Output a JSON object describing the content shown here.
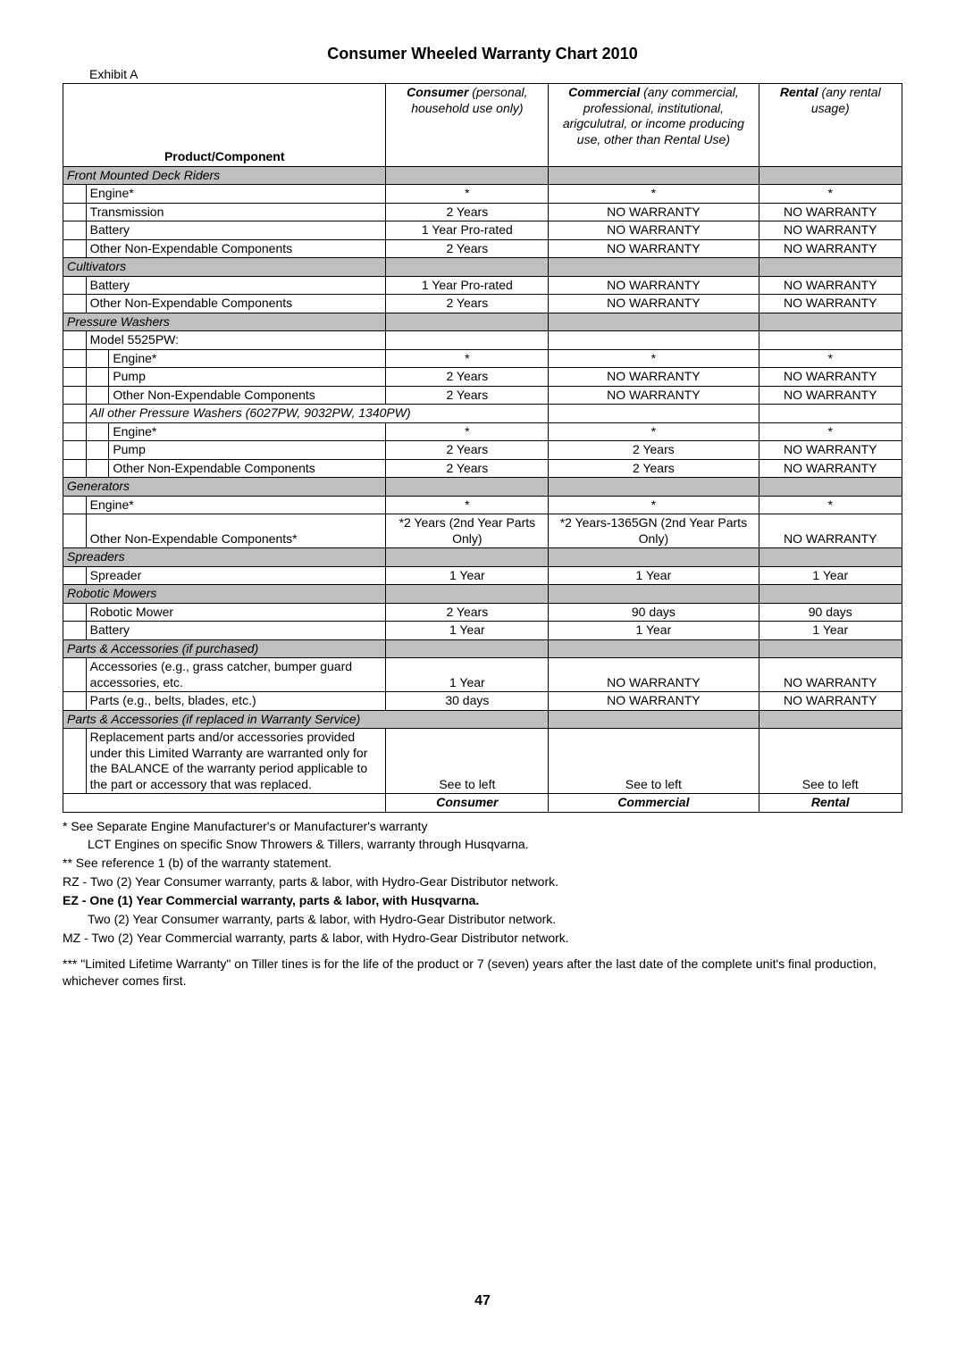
{
  "title": "Consumer Wheeled Warranty Chart 2010",
  "exhibit": "Exhibit A",
  "headers": {
    "product": "Product/Component",
    "consumer_b": "Consumer",
    "consumer_i": " (personal, household use only)",
    "commercial_b": "Commercial",
    "commercial_i": " (any commercial, professional, institutional, arigculutral, or income producing use, other than Rental Use)",
    "rental_b": "Rental",
    "rental_i": " (any rental usage)"
  },
  "sections": [
    {
      "name": "Front Mounted Deck Riders",
      "rows": [
        {
          "indent": 1,
          "label": "Engine*",
          "c": "*",
          "m": "*",
          "r": "*"
        },
        {
          "indent": 1,
          "label": "Transmission",
          "c": "2 Years",
          "m": "NO WARRANTY",
          "r": "NO WARRANTY"
        },
        {
          "indent": 1,
          "label": "Battery",
          "c": "1 Year Pro-rated",
          "m": "NO WARRANTY",
          "r": "NO WARRANTY"
        },
        {
          "indent": 1,
          "label": "Other Non-Expendable Components",
          "c": "2 Years",
          "m": "NO WARRANTY",
          "r": "NO WARRANTY"
        }
      ]
    },
    {
      "name": "Cultivators",
      "rows": [
        {
          "indent": 1,
          "label": "Battery",
          "c": "1 Year Pro-rated",
          "m": "NO WARRANTY",
          "r": "NO WARRANTY"
        },
        {
          "indent": 1,
          "label": "Other Non-Expendable Components",
          "c": "2 Years",
          "m": "NO WARRANTY",
          "r": "NO WARRANTY"
        }
      ]
    },
    {
      "name": "Pressure Washers",
      "rows": [
        {
          "indent": 1,
          "label": "Model 5525PW:",
          "c": "",
          "m": "",
          "r": ""
        },
        {
          "indent": 2,
          "label": "Engine*",
          "c": "*",
          "m": "*",
          "r": "*"
        },
        {
          "indent": 2,
          "label": "Pump",
          "c": "2 Years",
          "m": "NO WARRANTY",
          "r": "NO WARRANTY"
        },
        {
          "indent": 2,
          "label": "Other Non-Expendable Components",
          "c": "2 Years",
          "m": "NO WARRANTY",
          "r": "NO WARRANTY"
        },
        {
          "indent": 1,
          "label": "All other Pressure Washers (6027PW, 9032PW, 1340PW)",
          "c": "",
          "m": "",
          "r": "",
          "note": true,
          "span": 2
        },
        {
          "indent": 2,
          "label": "Engine*",
          "c": "*",
          "m": "*",
          "r": "*"
        },
        {
          "indent": 2,
          "label": "Pump",
          "c": "2 Years",
          "m": "2 Years",
          "r": "NO WARRANTY"
        },
        {
          "indent": 2,
          "label": "Other Non-Expendable Components",
          "c": "2 Years",
          "m": "2 Years",
          "r": "NO WARRANTY"
        }
      ]
    },
    {
      "name": "Generators",
      "rows": [
        {
          "indent": 1,
          "label": "Engine*",
          "c": "*",
          "m": "*",
          "r": "*"
        },
        {
          "indent": 1,
          "label": "Other Non-Expendable Components*",
          "c": "*2 Years (2nd Year Parts Only)",
          "m": "*2 Years-1365GN  (2nd Year Parts Only)",
          "r": "NO WARRANTY",
          "valign": "bottom"
        }
      ]
    },
    {
      "name": "Spreaders",
      "rows": [
        {
          "indent": 1,
          "label": "Spreader",
          "c": "1 Year",
          "m": "1 Year",
          "r": "1 Year"
        }
      ]
    },
    {
      "name": "Robotic Mowers",
      "rows": [
        {
          "indent": 1,
          "label": "Robotic Mower",
          "c": "2 Years",
          "m": "90 days",
          "r": "90 days"
        },
        {
          "indent": 1,
          "label": "Battery",
          "c": "1 Year",
          "m": "1 Year",
          "r": "1 Year"
        }
      ]
    },
    {
      "name": "Parts & Accessories (if purchased)",
      "rows": [
        {
          "indent": 1,
          "label": "Accessories (e.g., grass catcher, bumper guard accessories, etc.",
          "c": "1 Year",
          "m": "NO WARRANTY",
          "r": "NO WARRANTY",
          "valign": "bottom"
        },
        {
          "indent": 1,
          "label": "Parts (e.g., belts, blades, etc.)",
          "c": "30 days",
          "m": "NO WARRANTY",
          "r": "NO WARRANTY"
        }
      ]
    },
    {
      "name": "Parts & Accessories (if replaced in Warranty Service)",
      "spanfull": true,
      "rows": [
        {
          "indent": 1,
          "label": "Replacement parts and/or accessories provided under this Limited Warranty are warranted only for the BALANCE of the warranty period applicable to the part or accessory that was replaced.",
          "c": "See to left",
          "m": "See to left",
          "r": "See to left",
          "valign": "bottom"
        }
      ]
    }
  ],
  "footer_row": {
    "c": "Consumer",
    "m": "Commercial",
    "r": "Rental"
  },
  "notes": [
    {
      "text": "* See Separate Engine Manufacturer's  or Manufacturer's warranty"
    },
    {
      "text": "LCT Engines on specific Snow Throwers & Tillers, warranty through Husqvarna.",
      "indent": true
    },
    {
      "text": "** See reference 1 (b) of the warranty statement."
    },
    {
      "text": "RZ - Two (2) Year Consumer warranty, parts & labor, with Hydro-Gear Distributor network."
    },
    {
      "text": "EZ - One (1) Year Commercial warranty, parts & labor, with Husqvarna.",
      "bold": true
    },
    {
      "text": "Two (2) Year Consumer warranty, parts & labor, with Hydro-Gear Distributor network.",
      "indent": true
    },
    {
      "text": "MZ - Two (2) Year Commercial warranty, parts & labor, with Hydro-Gear Distributor network."
    },
    {
      "text": "*** \"Limited Lifetime Warranty\" on Tiller tines is for the life of the product or 7 (seven) years after the last date of the complete unit's final production, whichever comes first.",
      "mt": true
    }
  ],
  "page_number": "47"
}
